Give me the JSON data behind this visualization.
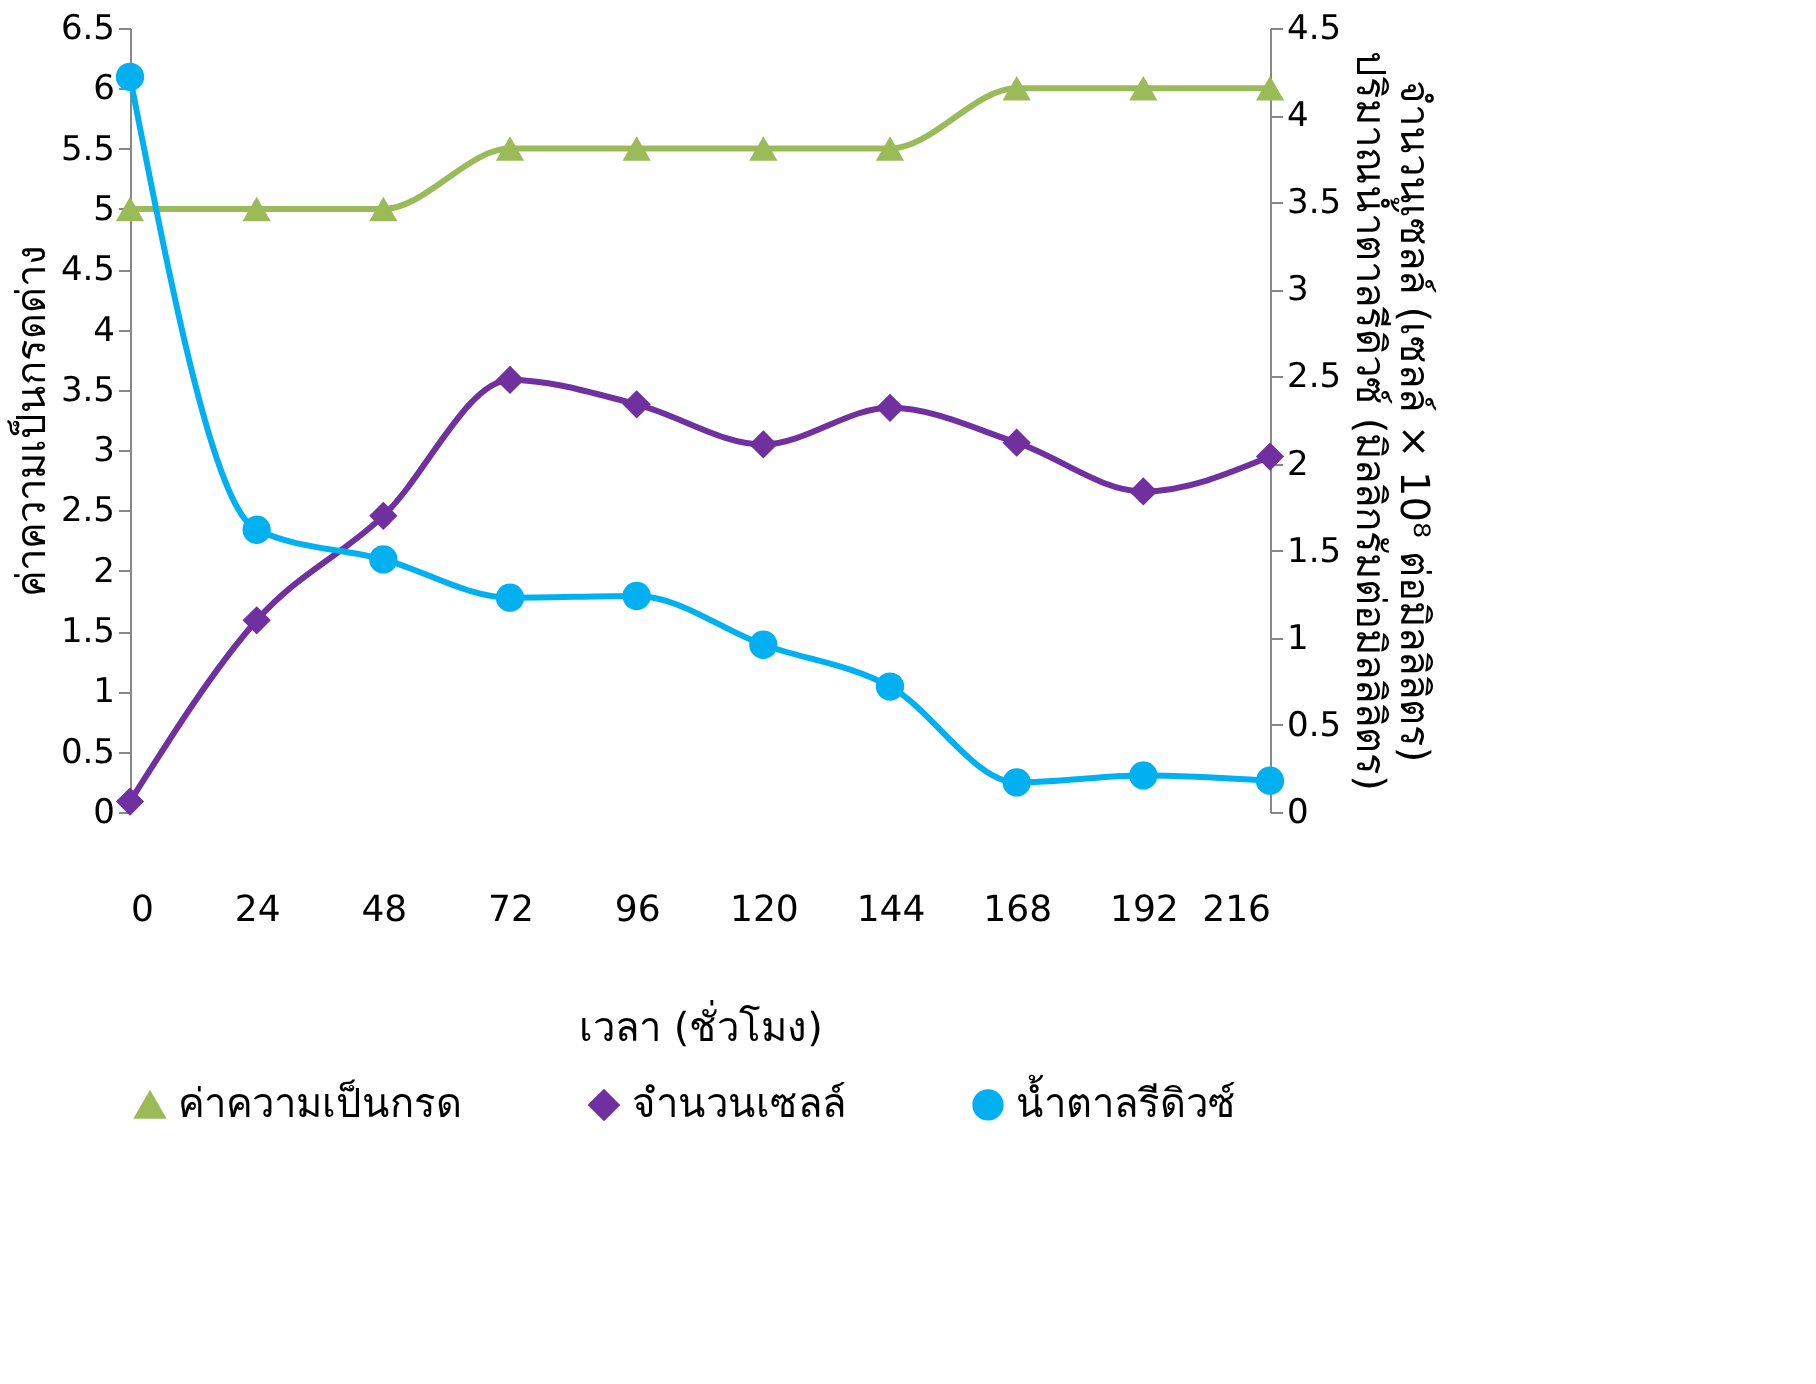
{
  "chart_data": {
    "type": "line",
    "x": [
      0,
      24,
      48,
      72,
      96,
      120,
      144,
      168,
      192,
      216
    ],
    "xlim": [
      0,
      216
    ],
    "xticks": [
      0,
      24,
      48,
      72,
      96,
      120,
      144,
      168,
      192,
      216
    ],
    "xlabel": "เวลา (ชั่วโมง)",
    "ylabel": "ค่าความเป็นกรดด่าง",
    "y2label": "จำนวนเซลล์ (เซลล์ × 10⁸ ต่อมิลลิลิตร)\nปริมาณน้ำตาลรีดิวซ์ (มิลลิกรัมต่อมิลลิลิตร)",
    "ylim": [
      0,
      6.5
    ],
    "yticks": [
      0,
      0.5,
      1,
      1.5,
      2,
      2.5,
      3,
      3.5,
      4,
      4.5,
      5,
      5.5,
      6,
      6.5
    ],
    "y2lim": [
      0,
      4.5
    ],
    "y2ticks": [
      0,
      0.5,
      1,
      1.5,
      2,
      2.5,
      3,
      3.5,
      4,
      4.5
    ],
    "grid": false,
    "legend": "bottom",
    "series": [
      {
        "name": "ค่าความเป็นกรด",
        "color": "#9bbb59",
        "marker": "triangle",
        "values": [
          5,
          5,
          5,
          5.5,
          5.5,
          5.5,
          5.5,
          6,
          6,
          6
        ]
      },
      {
        "name": "จำนวนเซลล์",
        "color": "#7030a0",
        "marker": "diamond",
        "axis": "y2",
        "values": [
          0.06,
          1.1,
          1.7,
          2.48,
          2.34,
          2.11,
          2.32,
          2.12,
          1.84,
          2.04
        ]
      },
      {
        "name": "น้ำตาลรีดิวซ์",
        "color": "#00b0f0",
        "marker": "circle",
        "axis": "y2",
        "values": [
          4.22,
          1.62,
          1.45,
          1.23,
          1.24,
          0.96,
          0.72,
          0.17,
          0.21,
          0.18
        ]
      }
    ]
  }
}
